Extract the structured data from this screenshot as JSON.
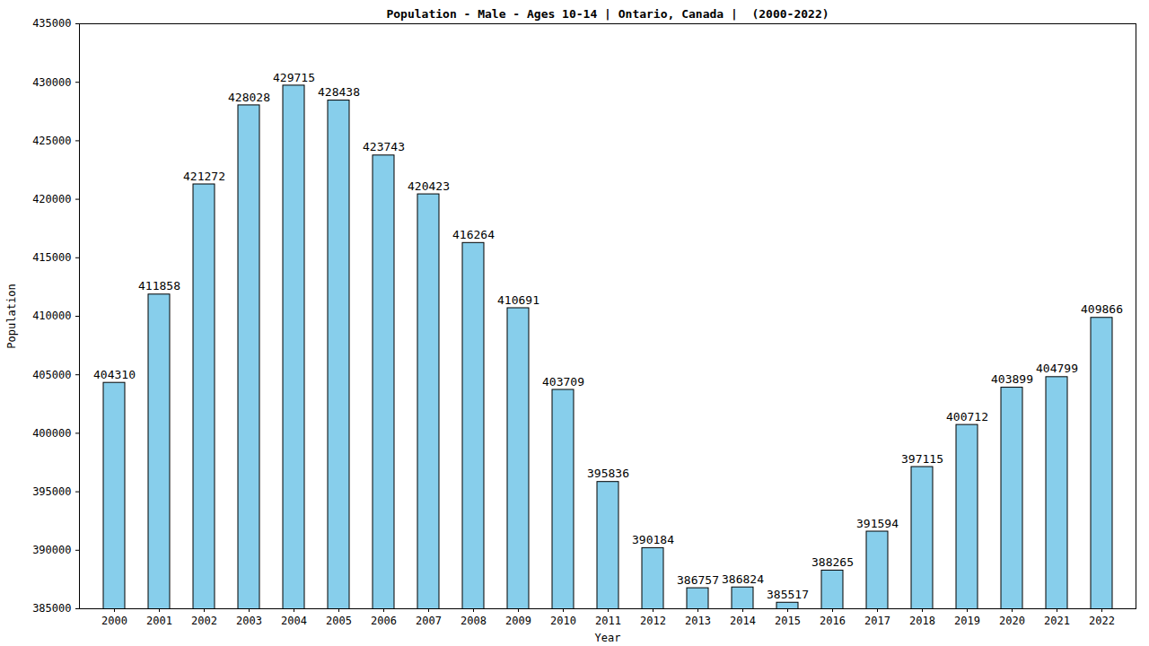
{
  "chart_data": {
    "type": "bar",
    "title": "Population - Male - Ages 10-14 | Ontario, Canada |  (2000-2022)",
    "x_label": "Year",
    "y_label": "Population",
    "categories": [
      "2000",
      "2001",
      "2002",
      "2003",
      "2004",
      "2005",
      "2006",
      "2007",
      "2008",
      "2009",
      "2010",
      "2011",
      "2012",
      "2013",
      "2014",
      "2015",
      "2016",
      "2017",
      "2018",
      "2019",
      "2020",
      "2021",
      "2022"
    ],
    "values": [
      404310,
      411858,
      421272,
      428028,
      429715,
      428438,
      423743,
      420423,
      416264,
      410691,
      403709,
      395836,
      390184,
      386757,
      386824,
      385517,
      388265,
      391594,
      397115,
      400712,
      403899,
      404799,
      409866
    ],
    "color": "#87ceeb",
    "ylim": [
      385000,
      435000
    ],
    "yticks": [
      385000,
      390000,
      395000,
      400000,
      405000,
      410000,
      415000,
      420000,
      425000,
      430000,
      435000
    ],
    "grid": false,
    "data_labels": true
  }
}
